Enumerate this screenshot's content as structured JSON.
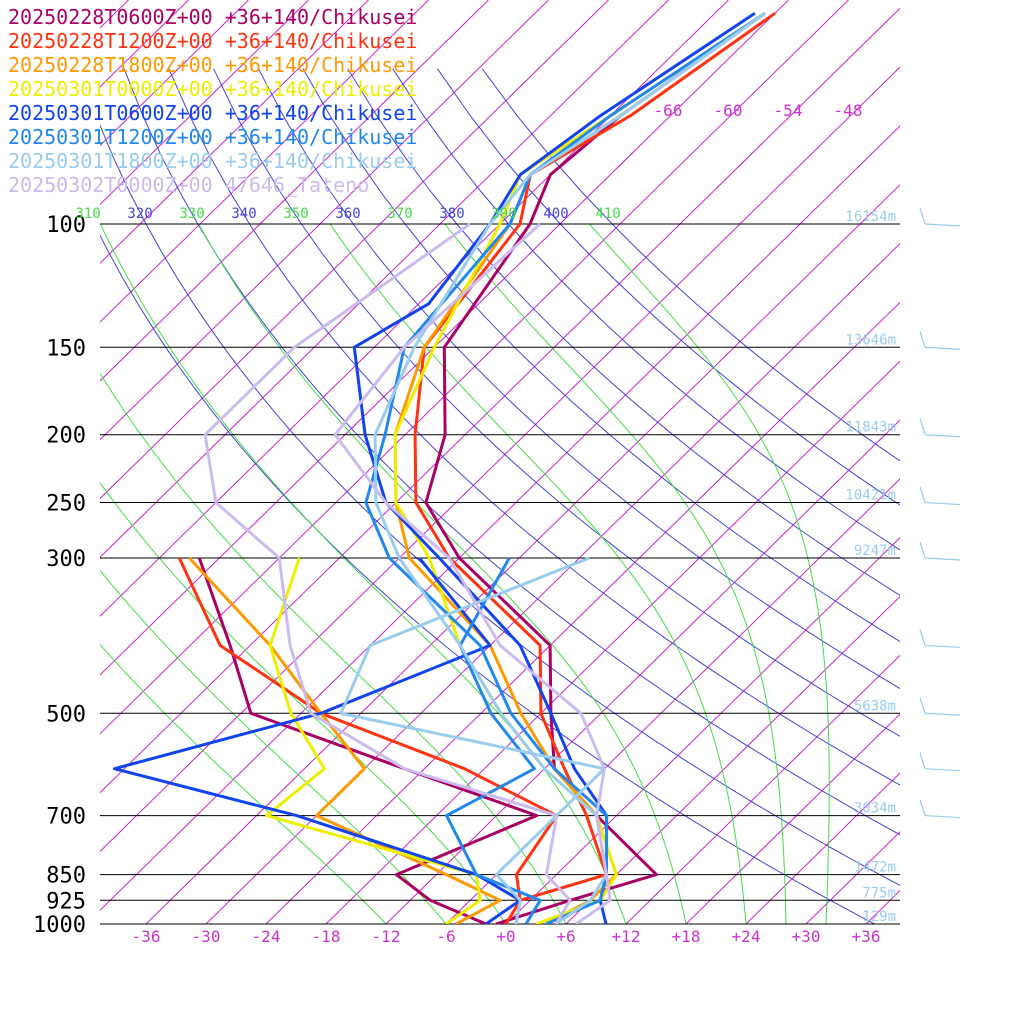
{
  "chart_data": {
    "type": "line",
    "title": "",
    "legend_placement": "top-left",
    "xlabel": "",
    "ylabel": "",
    "x_ticks": [
      "-36",
      "-30",
      "-24",
      "-18",
      "-12",
      "-6",
      "+0",
      "+6",
      "+12",
      "+18",
      "+24",
      "+30",
      "+36"
    ],
    "x_tick_values": [
      -36,
      -30,
      -24,
      -18,
      -12,
      -6,
      0,
      6,
      12,
      18,
      24,
      30,
      36
    ],
    "y_ticks": [
      "100",
      "150",
      "200",
      "250",
      "300",
      "500",
      "700",
      "850",
      "925",
      "1000"
    ],
    "y_tick_values": [
      100,
      150,
      200,
      250,
      300,
      500,
      700,
      850,
      925,
      1000
    ],
    "y_scale": "log",
    "ylim": [
      1000,
      100
    ],
    "xlim_at_1000hPa": [
      -40,
      40
    ],
    "upper_temp_labels": [
      "-66",
      "-60",
      "-54",
      "-48"
    ],
    "upper_temp_values": [
      -66,
      -60,
      -54,
      -48
    ],
    "theta_labels": [
      "310",
      "320",
      "330",
      "340",
      "350",
      "360",
      "370",
      "380",
      "390",
      "400",
      "410"
    ],
    "theta_values": [
      310,
      320,
      330,
      340,
      350,
      360,
      370,
      380,
      390,
      400,
      410
    ],
    "height_labels": [
      "16154m",
      "13646m",
      "11843m",
      "10421m",
      "9247m",
      "5638m",
      "3034m",
      "1472m",
      "775m",
      "129m"
    ],
    "height_pressures": [
      100,
      150,
      200,
      250,
      300,
      500,
      700,
      850,
      925,
      1000
    ],
    "colors": {
      "isobar": "#000000",
      "isotherm": "#cc22cc",
      "dry_adiabat": "#4444dd",
      "moist_adiabat": "#44dd44",
      "height": "#99ccee",
      "barb": "#99ccee"
    },
    "series": [
      {
        "name": "20250228T0600Z+00 +36+140/Chikusei",
        "color": "#aa0066",
        "temperature": [
          [
            1000,
            -1
          ],
          [
            925,
            4
          ],
          [
            850,
            10
          ],
          [
            700,
            -2
          ],
          [
            600,
            -11
          ],
          [
            500,
            -17
          ],
          [
            400,
            -24
          ],
          [
            300,
            -42
          ],
          [
            250,
            -51
          ],
          [
            200,
            -56
          ],
          [
            150,
            -65
          ],
          [
            100,
            -69
          ],
          [
            85,
            -72
          ],
          [
            70,
            -71
          ],
          [
            50,
            -67
          ]
        ],
        "dewpoint": [
          [
            1000,
            -2
          ],
          [
            925,
            -10
          ],
          [
            850,
            -16
          ],
          [
            700,
            -8
          ],
          [
            600,
            -26
          ],
          [
            500,
            -47
          ],
          [
            400,
            -56
          ],
          [
            300,
            -68
          ]
        ]
      },
      {
        "name": "20250228T1200Z+00 +36+140/Chikusei",
        "color": "#ff3311",
        "temperature": [
          [
            1000,
            1
          ],
          [
            925,
            -1
          ],
          [
            850,
            5
          ],
          [
            700,
            -3
          ],
          [
            600,
            -10
          ],
          [
            500,
            -18
          ],
          [
            400,
            -25
          ],
          [
            300,
            -43
          ],
          [
            250,
            -52
          ],
          [
            200,
            -59
          ],
          [
            150,
            -67
          ],
          [
            100,
            -70
          ],
          [
            85,
            -74
          ],
          [
            70,
            -70
          ],
          [
            50,
            -66
          ]
        ],
        "dewpoint": [
          [
            1000,
            0
          ],
          [
            925,
            -1
          ],
          [
            850,
            -4
          ],
          [
            700,
            -6
          ],
          [
            600,
            -20
          ],
          [
            500,
            -40
          ],
          [
            400,
            -57
          ],
          [
            300,
            -70
          ]
        ]
      },
      {
        "name": "20250228T1800Z+00 +36+140/Chikusei",
        "color": "#ff9900",
        "temperature": [
          [
            1000,
            4
          ],
          [
            925,
            6
          ],
          [
            850,
            6
          ],
          [
            700,
            -2
          ],
          [
            600,
            -11
          ],
          [
            500,
            -20
          ],
          [
            400,
            -30
          ],
          [
            300,
            -47
          ],
          [
            250,
            -54
          ],
          [
            200,
            -61
          ],
          [
            150,
            -67
          ],
          [
            100,
            -71
          ],
          [
            85,
            -74
          ],
          [
            70,
            -71
          ],
          [
            50,
            -67
          ]
        ],
        "dewpoint": [
          [
            1000,
            -5
          ],
          [
            925,
            -3
          ],
          [
            850,
            -11
          ],
          [
            700,
            -30
          ],
          [
            600,
            -30
          ],
          [
            500,
            -40
          ],
          [
            400,
            -52
          ],
          [
            300,
            -69
          ]
        ]
      },
      {
        "name": "20250301T0000Z+00 +36+140/Chikusei",
        "color": "#eeee00",
        "temperature": [
          [
            1000,
            3
          ],
          [
            925,
            7
          ],
          [
            850,
            6
          ],
          [
            700,
            -2
          ],
          [
            600,
            -12
          ],
          [
            500,
            -22
          ],
          [
            400,
            -33
          ],
          [
            300,
            -45
          ],
          [
            250,
            -54
          ],
          [
            200,
            -61
          ],
          [
            150,
            -66
          ],
          [
            100,
            -72
          ],
          [
            85,
            -75
          ],
          [
            70,
            -72
          ],
          [
            50,
            -67
          ]
        ],
        "dewpoint": [
          [
            1000,
            -6
          ],
          [
            925,
            -5
          ],
          [
            850,
            -8
          ],
          [
            700,
            -35
          ],
          [
            600,
            -34
          ],
          [
            500,
            -43
          ],
          [
            400,
            -52
          ],
          [
            300,
            -58
          ]
        ]
      },
      {
        "name": "20250301T0600Z+00 +36+140/Chikusei",
        "color": "#1144ee",
        "temperature": [
          [
            1000,
            10
          ],
          [
            925,
            7
          ],
          [
            850,
            5
          ],
          [
            700,
            -1
          ],
          [
            600,
            -9
          ],
          [
            500,
            -17
          ],
          [
            400,
            -27
          ],
          [
            300,
            -44
          ],
          [
            250,
            -55
          ],
          [
            200,
            -64
          ],
          [
            150,
            -74
          ],
          [
            130,
            -71
          ],
          [
            100,
            -73
          ],
          [
            85,
            -75
          ],
          [
            70,
            -73
          ],
          [
            50,
            -68
          ]
        ],
        "dewpoint": [
          [
            1000,
            -2
          ],
          [
            925,
            -1
          ],
          [
            850,
            -8
          ],
          [
            700,
            -32
          ],
          [
            600,
            -55
          ],
          [
            500,
            -40
          ],
          [
            400,
            -30
          ],
          [
            300,
            -46
          ]
        ]
      },
      {
        "name": "20250301T1200Z+00 +36+140/Chikusei",
        "color": "#2288ee",
        "temperature": [
          [
            1000,
            4
          ],
          [
            925,
            7
          ],
          [
            850,
            5
          ],
          [
            700,
            -1
          ],
          [
            600,
            -11
          ],
          [
            500,
            -21
          ],
          [
            400,
            -31
          ],
          [
            300,
            -49
          ],
          [
            250,
            -57
          ],
          [
            200,
            -62
          ],
          [
            150,
            -69
          ],
          [
            100,
            -71
          ],
          [
            85,
            -74
          ],
          [
            70,
            -72
          ],
          [
            50,
            -67
          ]
        ],
        "dewpoint": [
          [
            1000,
            2
          ],
          [
            925,
            1
          ],
          [
            850,
            -8
          ],
          [
            700,
            -17
          ],
          [
            600,
            -13
          ],
          [
            500,
            -23
          ],
          [
            400,
            -33
          ],
          [
            300,
            -37
          ]
        ]
      },
      {
        "name": "20250301T1800Z+00 +36+140/Chikusei",
        "color": "#99ccee",
        "temperature": [
          [
            1000,
            5
          ],
          [
            925,
            6
          ],
          [
            850,
            5
          ],
          [
            700,
            -2
          ],
          [
            600,
            -12
          ],
          [
            500,
            -22
          ],
          [
            400,
            -33
          ],
          [
            300,
            -48
          ],
          [
            250,
            -56
          ],
          [
            200,
            -63
          ],
          [
            150,
            -68
          ],
          [
            100,
            -73
          ],
          [
            85,
            -74
          ],
          [
            70,
            -71
          ],
          [
            50,
            -67
          ]
        ],
        "dewpoint": [
          [
            1000,
            1
          ],
          [
            925,
            -1
          ],
          [
            850,
            -6
          ],
          [
            700,
            -6
          ],
          [
            600,
            -6
          ],
          [
            500,
            -38
          ],
          [
            400,
            -42
          ],
          [
            300,
            -29
          ]
        ]
      },
      {
        "name": "20250302T0000Z+00 47646_Tateno",
        "color": "#ccbbee",
        "temperature": [
          [
            1000,
            7
          ],
          [
            925,
            8
          ],
          [
            850,
            5
          ],
          [
            700,
            -2
          ],
          [
            600,
            -6
          ],
          [
            500,
            -14
          ],
          [
            400,
            -29
          ],
          [
            300,
            -43
          ],
          [
            250,
            -55
          ],
          [
            200,
            -67
          ],
          [
            150,
            -69
          ],
          [
            100,
            -68
          ]
        ],
        "dewpoint": [
          [
            1000,
            5
          ],
          [
            925,
            4
          ],
          [
            850,
            -1
          ],
          [
            700,
            -6
          ],
          [
            600,
            -26
          ],
          [
            500,
            -41
          ],
          [
            400,
            -50
          ],
          [
            300,
            -60
          ],
          [
            250,
            -72
          ],
          [
            200,
            -80
          ],
          [
            150,
            -80
          ],
          [
            100,
            -75
          ]
        ]
      }
    ]
  }
}
